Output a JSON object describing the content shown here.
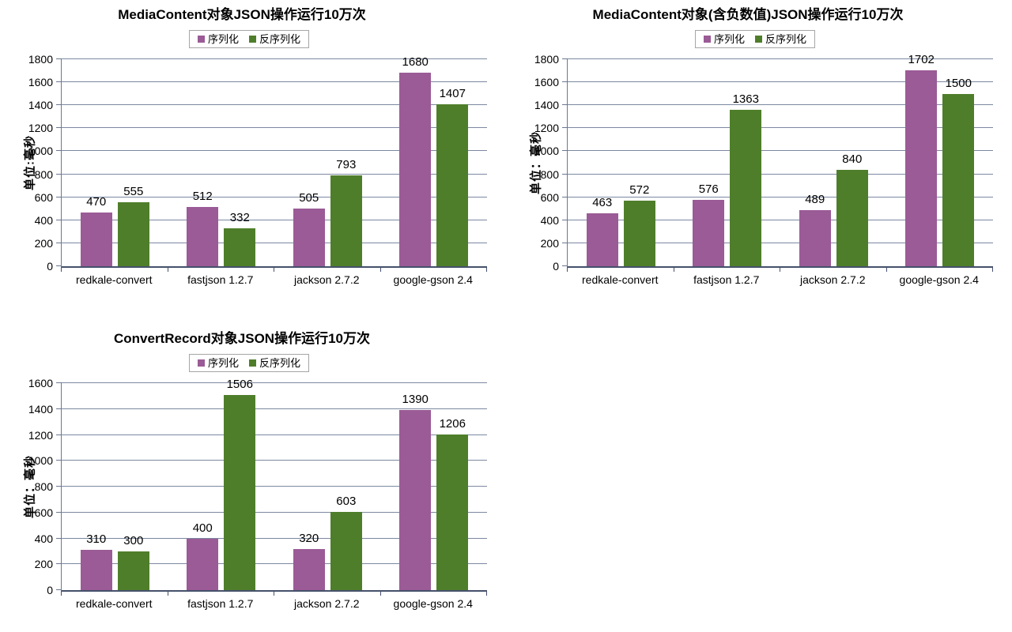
{
  "palette": {
    "serialize": "#9A5B96",
    "deserialize": "#4F7E2B",
    "gridline": "#7C88A0",
    "axis": "#45516B",
    "background": "#FFFFFF"
  },
  "chart_data": [
    {
      "type": "bar",
      "title": "MediaContent对象JSON操作运行10万次",
      "ylabel": "单位:毫秒",
      "xlabel": "",
      "ylim": [
        0,
        1800
      ],
      "ystep": 200,
      "grid": true,
      "legend_position": "top",
      "categories": [
        "redkale-convert",
        "fastjson 1.2.7",
        "jackson 2.7.2",
        "google-gson 2.4"
      ],
      "series": [
        {
          "name": "序列化",
          "color": "#9A5B96",
          "values": [
            470,
            512,
            505,
            1680
          ]
        },
        {
          "name": "反序列化",
          "color": "#4F7E2B",
          "values": [
            555,
            332,
            793,
            1407
          ]
        }
      ]
    },
    {
      "type": "bar",
      "title": "MediaContent对象(含负数值)JSON操作运行10万次",
      "ylabel": "单位：毫秒",
      "xlabel": "",
      "ylim": [
        0,
        1800
      ],
      "ystep": 200,
      "grid": true,
      "legend_position": "top",
      "categories": [
        "redkale-convert",
        "fastjson 1.2.7",
        "jackson 2.7.2",
        "google-gson 2.4"
      ],
      "series": [
        {
          "name": "序列化",
          "color": "#9A5B96",
          "values": [
            463,
            576,
            489,
            1702
          ]
        },
        {
          "name": "反序列化",
          "color": "#4F7E2B",
          "values": [
            572,
            1363,
            840,
            1500
          ]
        }
      ]
    },
    {
      "type": "bar",
      "title": "ConvertRecord对象JSON操作运行10万次",
      "ylabel": "单位：毫秒",
      "xlabel": "",
      "ylim": [
        0,
        1600
      ],
      "ystep": 200,
      "grid": true,
      "legend_position": "top",
      "categories": [
        "redkale-convert",
        "fastjson 1.2.7",
        "jackson 2.7.2",
        "google-gson 2.4"
      ],
      "series": [
        {
          "name": "序列化",
          "color": "#9A5B96",
          "values": [
            310,
            400,
            320,
            1390
          ]
        },
        {
          "name": "反序列化",
          "color": "#4F7E2B",
          "values": [
            300,
            1506,
            603,
            1206
          ]
        }
      ]
    }
  ]
}
